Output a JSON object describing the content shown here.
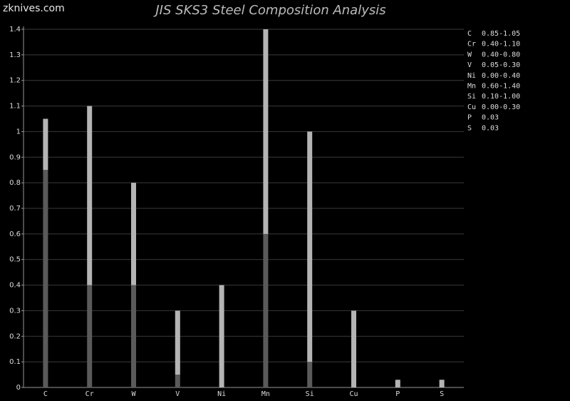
{
  "watermark": "zknives.com",
  "chart_data": {
    "type": "stacked-bar",
    "title": "JIS SKS3 Steel Composition Analysis",
    "categories": [
      "C",
      "Cr",
      "W",
      "V",
      "Ni",
      "Mn",
      "Si",
      "Cu",
      "P",
      "S"
    ],
    "range_labels": [
      "0.85-1.05",
      "0.40-1.10",
      "0.40-0.80",
      "0.05-0.30",
      "0.00-0.40",
      "0.60-1.40",
      "0.10-1.00",
      "0.00-0.30",
      "0.03",
      "0.03"
    ],
    "series": [
      {
        "color": "#5a5a5a",
        "values": [
          0.85,
          0.4,
          0.4,
          0.05,
          0,
          0.6,
          0.1,
          0,
          0,
          0
        ]
      },
      {
        "color": "#b4b4b4",
        "values": [
          0.2,
          0.7,
          0.4,
          0.25,
          0.4,
          0.8,
          0.9,
          0.3,
          0.03,
          0.03
        ]
      }
    ],
    "ylim": [
      0,
      1.4
    ],
    "yticks": [
      0,
      0.1,
      0.2,
      0.3,
      0.4,
      0.5,
      0.6,
      0.7,
      0.8,
      0.9,
      1,
      1.1,
      1.2,
      1.3,
      1.4
    ],
    "grid": true
  }
}
